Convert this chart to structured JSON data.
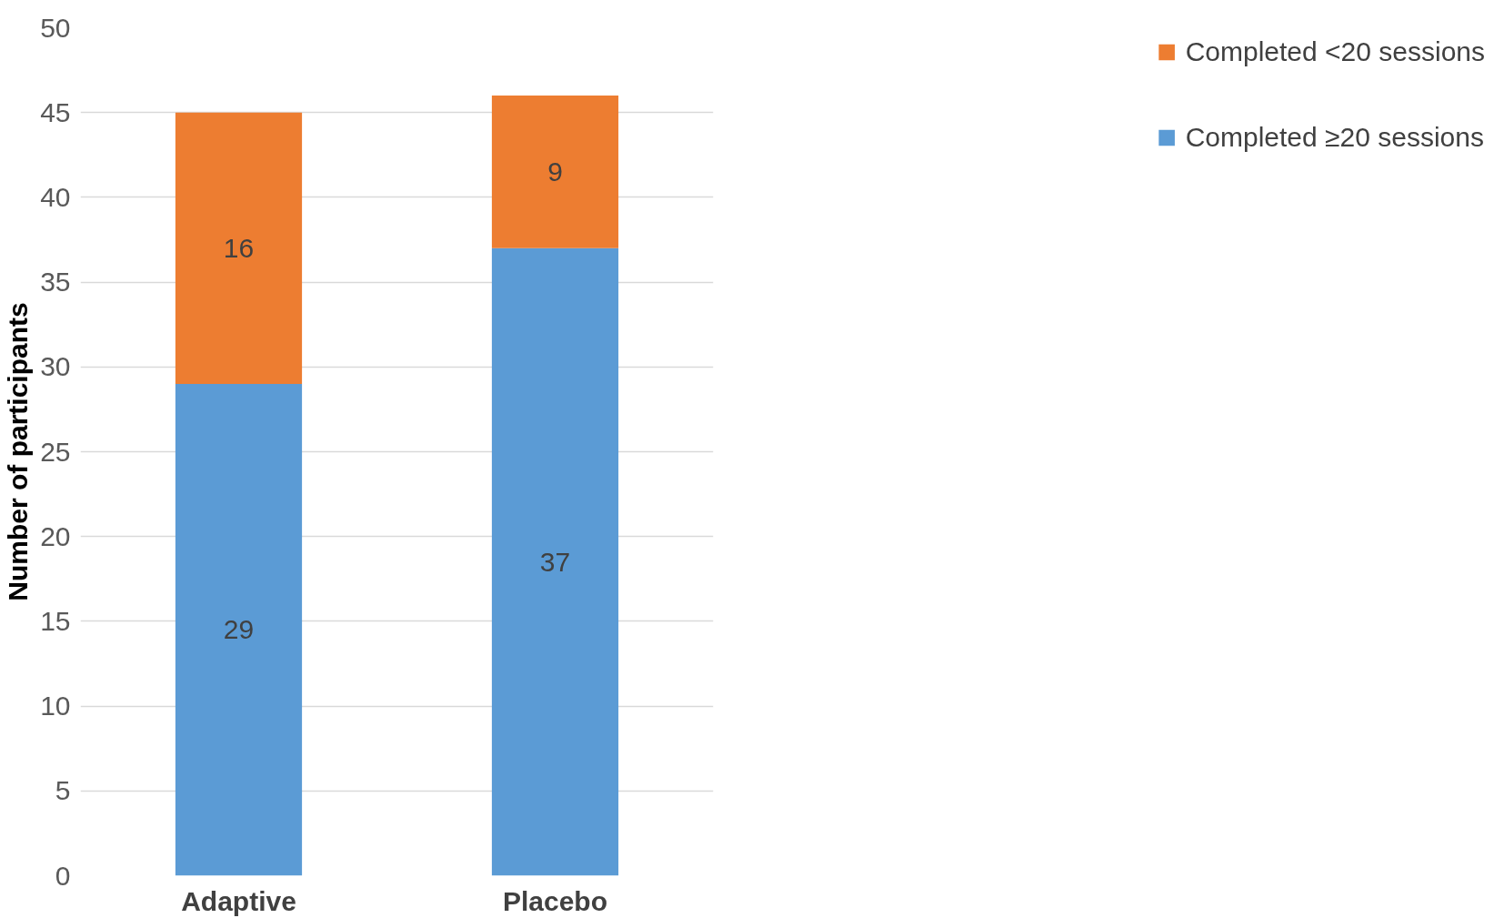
{
  "chart_data": {
    "type": "bar",
    "stacked": true,
    "ylabel": "Number of participants",
    "categories": [
      "Adaptive",
      "Placebo"
    ],
    "series": [
      {
        "name": "Completed ≥20 sessions",
        "color": "#5b9bd5",
        "values": [
          29,
          37
        ]
      },
      {
        "name": "Completed <20 sessions",
        "color": "#ed7d31",
        "values": [
          16,
          9
        ]
      }
    ],
    "ylim": [
      0,
      50
    ],
    "yticks": [
      0,
      5,
      10,
      15,
      20,
      25,
      30,
      35,
      40,
      45,
      50
    ],
    "grid": "y",
    "legend": "right",
    "data_labels": true
  }
}
